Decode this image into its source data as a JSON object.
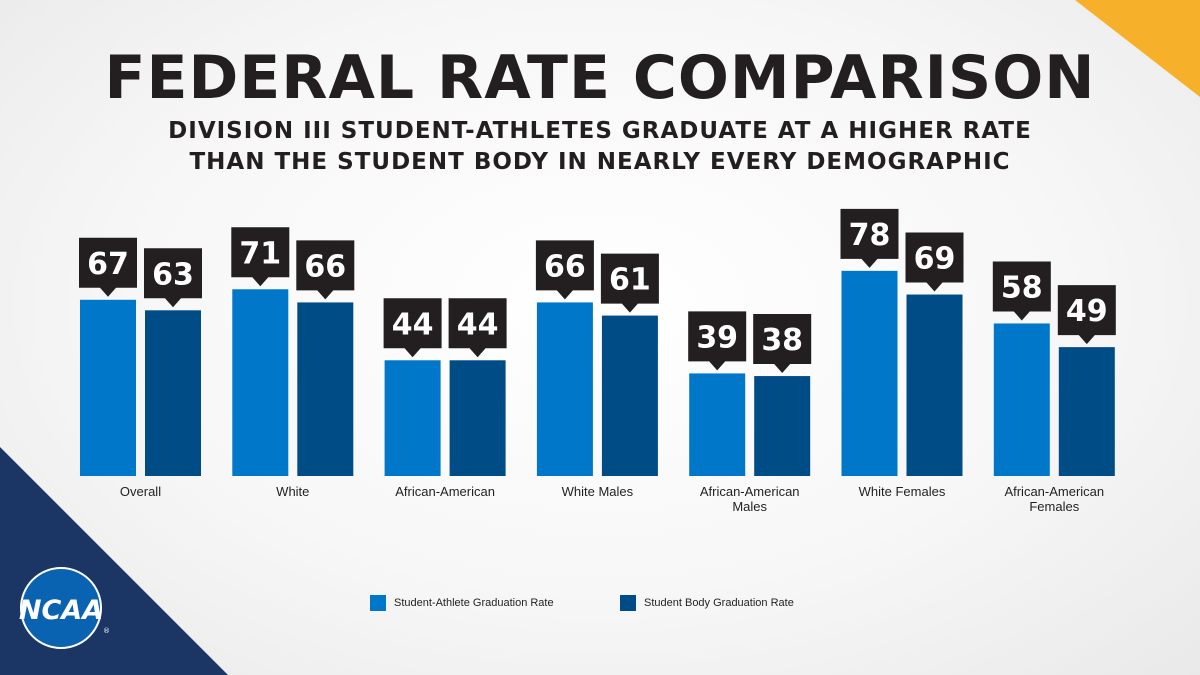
{
  "colors": {
    "student_athlete": "#0077c8",
    "student_body": "#004c87",
    "label_box": "#231f20",
    "navy_corner": "#1b3665",
    "gold_corner": "#f7b02a"
  },
  "title": "FEDERAL RATE COMPARISON",
  "subtitle": {
    "line1": "DIVISION III STUDENT-ATHLETES GRADUATE AT A HIGHER RATE",
    "line2": "THAN THE STUDENT BODY IN NEARLY EVERY DEMOGRAPHIC"
  },
  "chart_data": {
    "type": "bar",
    "categories": [
      [
        "Overall"
      ],
      [
        "White"
      ],
      [
        "African-American"
      ],
      [
        "White Males"
      ],
      [
        "African-American",
        "Males"
      ],
      [
        "White Females"
      ],
      [
        "African-American",
        "Females"
      ]
    ],
    "series": [
      {
        "name": "Student-Athlete Graduation Rate",
        "values": [
          67,
          71,
          44,
          66,
          39,
          78,
          58
        ]
      },
      {
        "name": "Student Body Graduation Rate",
        "values": [
          63,
          66,
          44,
          61,
          38,
          69,
          49
        ]
      }
    ],
    "ylim": [
      0,
      100
    ],
    "legend_position": "bottom-center"
  },
  "legend": {
    "item1": "Student-Athlete Graduation Rate",
    "item2": "Student Body Graduation Rate"
  },
  "logo": {
    "text": "NCAA",
    "icon": "ncaa-logo-icon"
  }
}
